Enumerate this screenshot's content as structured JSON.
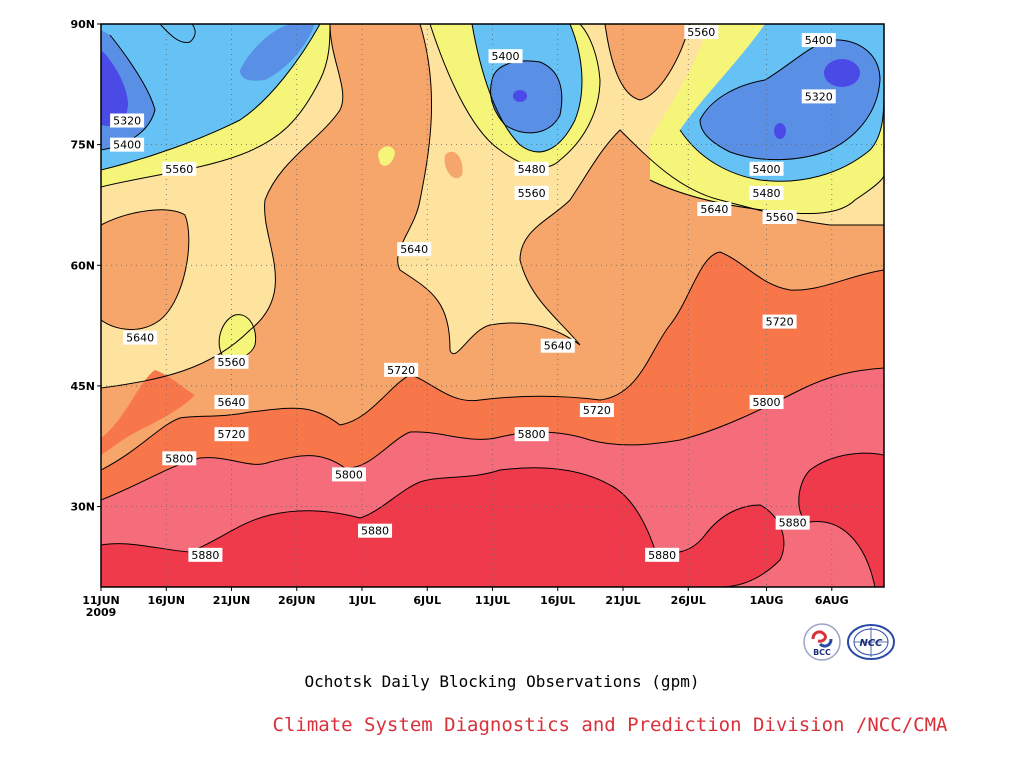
{
  "chart_data": {
    "type": "contour",
    "title": "Ochotsk Daily Blocking Observations (gpm)",
    "credit": "Climate System Diagnostics and Prediction Division /NCC/CMA",
    "y_ticks": [
      "30N",
      "45N",
      "60N",
      "75N",
      "90N"
    ],
    "y_values": [
      30,
      45,
      60,
      75,
      90
    ],
    "ylim": [
      20,
      90
    ],
    "x_ticks": [
      "11JUN",
      "16JUN",
      "21JUN",
      "26JUN",
      "1JUL",
      "6JUL",
      "11JUL",
      "16JUL",
      "21JUL",
      "26JUL",
      "1AUG",
      "6AUG"
    ],
    "x_year": "2009",
    "x_range": [
      "2009-06-11",
      "2009-08-10"
    ],
    "grid": true,
    "contour_levels": [
      5320,
      5400,
      5480,
      5560,
      5640,
      5720,
      5800,
      5880
    ],
    "colors": {
      "lt_5320": "#4a4ae6",
      "5320_5400": "#5a8fe6",
      "5400_5480": "#66c2f5",
      "5480_5560": "#f5f57a",
      "5560_5640": "#fde39e",
      "5640_5720": "#f7a66b",
      "5720_5800": "#f7764a",
      "5800_5880": "#f56d7a",
      "gt_5880": "#ef3a4c"
    },
    "contour_labels": [
      {
        "text": "5320",
        "date": "2009-06-13",
        "lat": 78
      },
      {
        "text": "5400",
        "date": "2009-06-13",
        "lat": 75
      },
      {
        "text": "5560",
        "date": "2009-06-17",
        "lat": 72
      },
      {
        "text": "5640",
        "date": "2009-06-14",
        "lat": 51
      },
      {
        "text": "5560",
        "date": "2009-06-21",
        "lat": 48
      },
      {
        "text": "5640",
        "date": "2009-06-21",
        "lat": 43
      },
      {
        "text": "5720",
        "date": "2009-06-21",
        "lat": 39
      },
      {
        "text": "5800",
        "date": "2009-06-17",
        "lat": 36
      },
      {
        "text": "5880",
        "date": "2009-06-19",
        "lat": 24
      },
      {
        "text": "5800",
        "date": "2009-06-30",
        "lat": 34
      },
      {
        "text": "5880",
        "date": "2009-07-02",
        "lat": 27
      },
      {
        "text": "5720",
        "date": "2009-07-04",
        "lat": 47
      },
      {
        "text": "5640",
        "date": "2009-07-05",
        "lat": 62
      },
      {
        "text": "5400",
        "date": "2009-07-12",
        "lat": 86
      },
      {
        "text": "5480",
        "date": "2009-07-14",
        "lat": 72
      },
      {
        "text": "5560",
        "date": "2009-07-14",
        "lat": 69
      },
      {
        "text": "5800",
        "date": "2009-07-14",
        "lat": 39
      },
      {
        "text": "5640",
        "date": "2009-07-16",
        "lat": 50
      },
      {
        "text": "5720",
        "date": "2009-07-19",
        "lat": 42
      },
      {
        "text": "5880",
        "date": "2009-07-24",
        "lat": 24
      },
      {
        "text": "5560",
        "date": "2009-07-27",
        "lat": 90
      },
      {
        "text": "5640",
        "date": "2009-07-28",
        "lat": 67
      },
      {
        "text": "5400",
        "date": "2009-08-05",
        "lat": 88
      },
      {
        "text": "5320",
        "date": "2009-08-05",
        "lat": 81
      },
      {
        "text": "5400",
        "date": "2009-08-01",
        "lat": 72
      },
      {
        "text": "5480",
        "date": "2009-08-01",
        "lat": 69
      },
      {
        "text": "5560",
        "date": "2009-08-02",
        "lat": 66
      },
      {
        "text": "5720",
        "date": "2009-08-02",
        "lat": 53
      },
      {
        "text": "5800",
        "date": "2009-08-01",
        "lat": 43
      },
      {
        "text": "5880",
        "date": "2009-08-03",
        "lat": 28
      }
    ]
  },
  "logos": {
    "left": {
      "name": "bcc-logo",
      "text": "BCC"
    },
    "right": {
      "name": "ncc-logo",
      "text": "NCC"
    }
  }
}
